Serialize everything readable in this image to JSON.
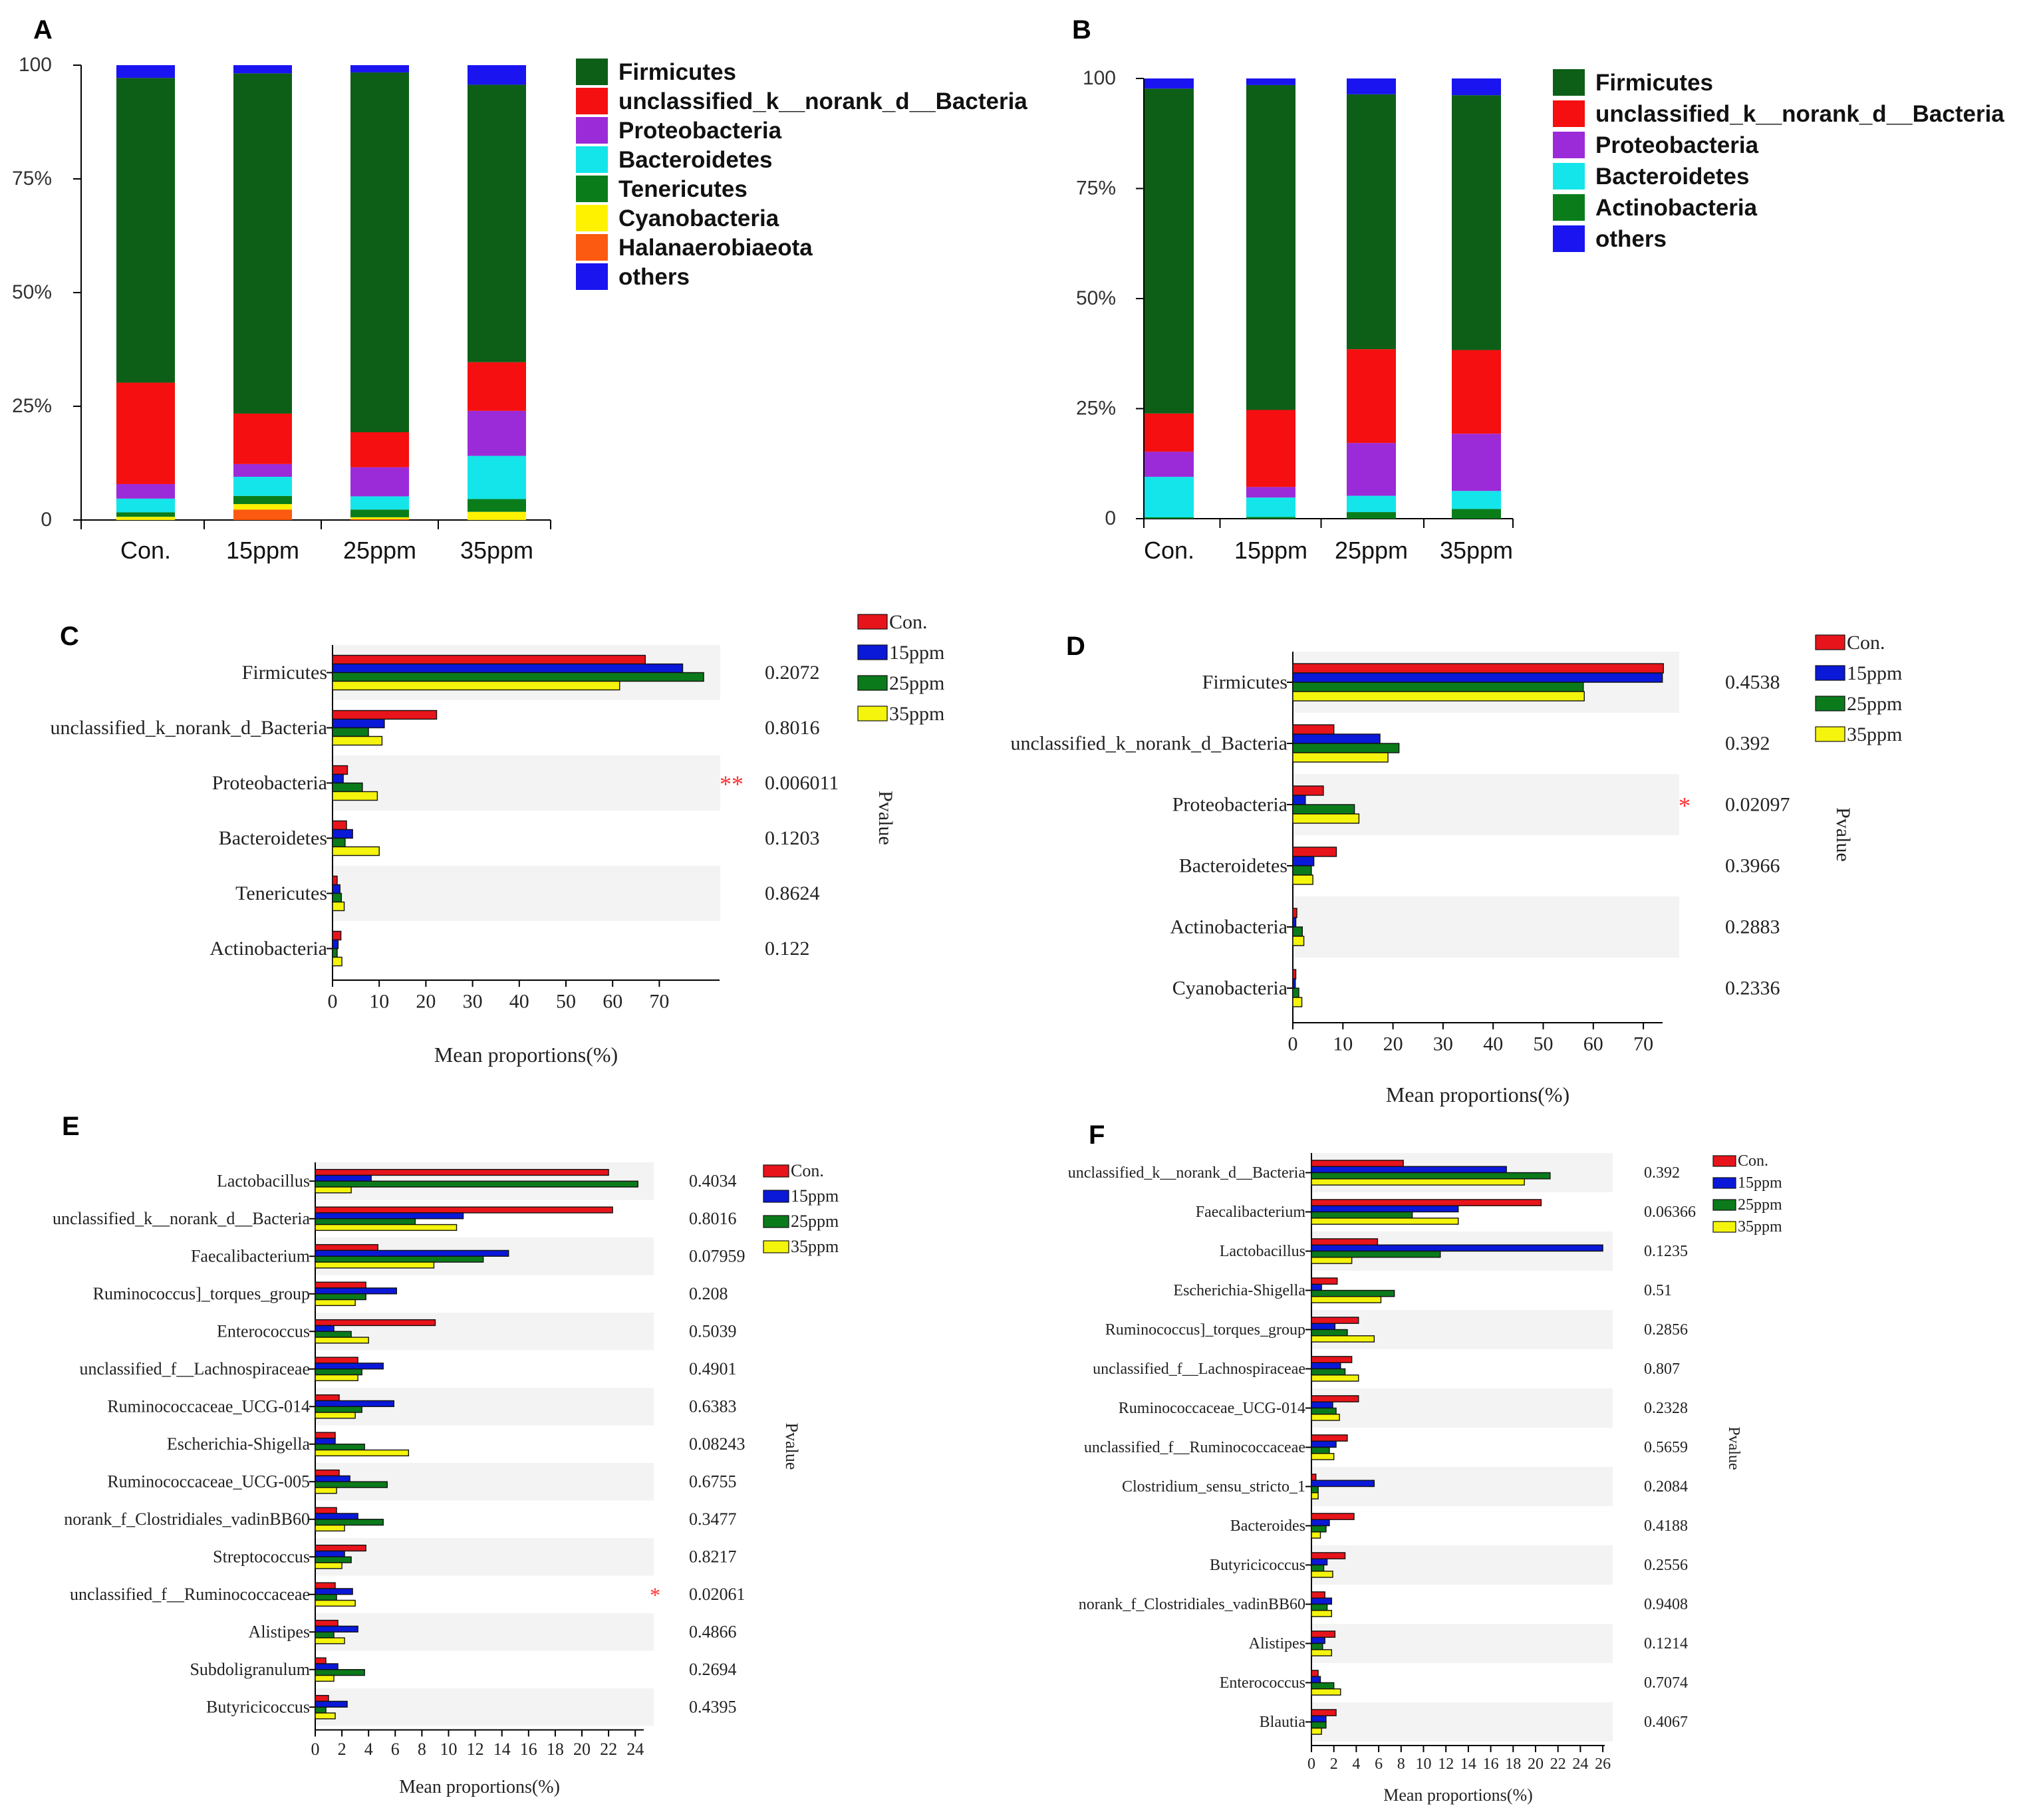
{
  "colors": {
    "Con.": "#e8141b",
    "15ppm": "#0a18d8",
    "25ppm": "#0b7a1b",
    "35ppm": "#f4f40d",
    "Firmicutes": "#0d5f17",
    "unclassified_k__norank_d__Bacteria": "#f50f10",
    "Proteobacteria": "#9b2bd8",
    "Bacteroidetes": "#14e5ea",
    "Tenericutes": "#0a7d1a",
    "Actinobacteria": "#0a7d1a",
    "Cyanobacteria": "#fff200",
    "Halanaerobiaeota": "#fb5a10",
    "others": "#1a14f0",
    "stripe": "#f3f3f3",
    "star": "#ff3030"
  },
  "chart_data": [
    {
      "panel": "A",
      "type": "bar",
      "stacked": true,
      "categories": [
        "Con.",
        "15ppm",
        "25ppm",
        "35ppm"
      ],
      "yticks": [
        "0",
        "25%",
        "50%",
        "75%",
        "100"
      ],
      "ylim": [
        0,
        100
      ],
      "series": [
        {
          "name": "Halanaerobiaeota",
          "values": [
            0.0,
            2.3,
            0.2,
            0.0
          ]
        },
        {
          "name": "Cyanobacteria",
          "values": [
            0.7,
            1.2,
            0.4,
            1.8
          ]
        },
        {
          "name": "Tenericutes",
          "values": [
            1.0,
            1.8,
            1.7,
            2.8
          ]
        },
        {
          "name": "Bacteroidetes",
          "values": [
            3.0,
            4.2,
            2.9,
            9.5
          ]
        },
        {
          "name": "Proteobacteria",
          "values": [
            3.2,
            2.8,
            6.4,
            9.9
          ]
        },
        {
          "name": "unclassified_k__norank_d__Bacteria",
          "values": [
            22.3,
            11.1,
            7.7,
            10.7
          ]
        },
        {
          "name": "Firmicutes",
          "values": [
            67.0,
            74.8,
            79.1,
            61.0
          ]
        },
        {
          "name": "others",
          "values": [
            2.8,
            1.8,
            1.6,
            4.3
          ]
        }
      ],
      "legend": [
        "Firmicutes",
        "unclassified_k__norank_d__Bacteria",
        "Proteobacteria",
        "Bacteroidetes",
        "Tenericutes",
        "Cyanobacteria",
        "Halanaerobiaeota",
        "others"
      ]
    },
    {
      "panel": "B",
      "type": "bar",
      "stacked": true,
      "categories": [
        "Con.",
        "15ppm",
        "25ppm",
        "35ppm"
      ],
      "yticks": [
        "0",
        "25%",
        "50%",
        "75%",
        "100"
      ],
      "ylim": [
        0,
        100
      ],
      "series": [
        {
          "name": "Actinobacteria",
          "values": [
            0.3,
            0.4,
            1.5,
            2.2
          ]
        },
        {
          "name": "Bacteroidetes",
          "values": [
            9.2,
            4.4,
            3.7,
            4.1
          ]
        },
        {
          "name": "Proteobacteria",
          "values": [
            5.7,
            2.4,
            12.0,
            13.0
          ]
        },
        {
          "name": "unclassified_k__norank_d__Bacteria",
          "values": [
            8.7,
            17.5,
            21.3,
            19.0
          ]
        },
        {
          "name": "Firmicutes",
          "values": [
            73.8,
            73.8,
            57.9,
            57.9
          ]
        },
        {
          "name": "others",
          "values": [
            2.3,
            1.5,
            3.6,
            3.8
          ]
        }
      ],
      "legend": [
        "Firmicutes",
        "unclassified_k__norank_d__Bacteria",
        "Proteobacteria",
        "Bacteroidetes",
        "Actinobacteria",
        "others"
      ]
    },
    {
      "panel": "C",
      "type": "bar",
      "orientation": "horizontal",
      "groups": [
        "Con.",
        "15ppm",
        "25ppm",
        "35ppm"
      ],
      "categories": [
        "Firmicutes",
        "unclassified_k_norank_d_Bacteria",
        "Proteobacteria",
        "Bacteroidetes",
        "Tenericutes",
        "Actinobacteria"
      ],
      "values": [
        [
          67.0,
          75.0,
          79.5,
          61.5
        ],
        [
          22.3,
          11.1,
          7.7,
          10.6
        ],
        [
          3.2,
          2.3,
          6.4,
          9.6
        ],
        [
          3.0,
          4.3,
          2.7,
          10.0
        ],
        [
          1.0,
          1.6,
          1.9,
          2.5
        ],
        [
          1.8,
          1.2,
          1.0,
          2.0
        ]
      ],
      "pvalues": [
        "0.2072",
        "0.8016",
        "0.006011",
        "0.1203",
        "0.8624",
        "0.122"
      ],
      "significance": [
        "",
        "",
        "**",
        "",
        "",
        ""
      ],
      "xticks": [
        "0",
        "10",
        "20",
        "30",
        "40",
        "50",
        "60",
        "70"
      ],
      "xlim": [
        0,
        80
      ],
      "xlabel": "Mean proportions(%)",
      "pvalue_label": "Pvalue"
    },
    {
      "panel": "D",
      "type": "bar",
      "orientation": "horizontal",
      "groups": [
        "Con.",
        "15ppm",
        "25ppm",
        "35ppm"
      ],
      "categories": [
        "Firmicutes",
        "unclassified_k_norank_d_Bacteria",
        "Proteobacteria",
        "Bacteroidetes",
        "Actinobacteria",
        "Cyanobacteria"
      ],
      "values": [
        [
          74.0,
          73.8,
          58.0,
          58.2
        ],
        [
          8.2,
          17.4,
          21.2,
          19.0
        ],
        [
          6.1,
          2.5,
          12.3,
          13.2
        ],
        [
          8.7,
          4.2,
          3.7,
          4.0
        ],
        [
          0.8,
          0.6,
          1.9,
          2.2
        ],
        [
          0.6,
          0.5,
          1.2,
          1.8
        ]
      ],
      "pvalues": [
        "0.4538",
        "0.392",
        "0.02097",
        "0.3966",
        "0.2883",
        "0.2336"
      ],
      "significance": [
        "",
        "",
        "*",
        "",
        "",
        ""
      ],
      "xticks": [
        "0",
        "10",
        "20",
        "30",
        "40",
        "50",
        "60",
        "70"
      ],
      "xlim": [
        0,
        75
      ],
      "xlabel": "Mean proportions(%)",
      "pvalue_label": "Pvalue"
    },
    {
      "panel": "E",
      "type": "bar",
      "orientation": "horizontal",
      "groups": [
        "Con.",
        "15ppm",
        "25ppm",
        "35ppm"
      ],
      "categories": [
        "Lactobacillus",
        "unclassified_k__norank_d__Bacteria",
        "Faecalibacterium",
        "Ruminococcus]_torques_group",
        "Enterococcus",
        "unclassified_f__Lachnospiraceae",
        "Ruminococcaceae_UCG-014",
        "Escherichia-Shigella",
        "Ruminococcaceae_UCG-005",
        "norank_f_Clostridiales_vadinBB60",
        "Streptococcus",
        "unclassified_f__Ruminococcaceae",
        "Alistipes",
        "Subdoligranulum",
        "Butyricicoccus"
      ],
      "values": [
        [
          22.0,
          4.2,
          24.2,
          2.7
        ],
        [
          22.3,
          11.1,
          7.5,
          10.6
        ],
        [
          4.7,
          14.5,
          12.6,
          8.9
        ],
        [
          3.8,
          6.1,
          3.8,
          3.0
        ],
        [
          9.0,
          1.4,
          2.7,
          4.0
        ],
        [
          3.2,
          5.1,
          3.5,
          3.2
        ],
        [
          1.8,
          5.9,
          3.5,
          3.0
        ],
        [
          1.5,
          1.5,
          3.7,
          7.0
        ],
        [
          1.8,
          2.6,
          5.4,
          1.6
        ],
        [
          1.6,
          3.2,
          5.1,
          2.2
        ],
        [
          3.8,
          2.2,
          2.7,
          2.0
        ],
        [
          1.5,
          2.8,
          1.6,
          3.0
        ],
        [
          1.7,
          3.2,
          1.4,
          2.2
        ],
        [
          0.8,
          1.7,
          3.7,
          1.4
        ],
        [
          1.0,
          2.4,
          0.8,
          1.5
        ]
      ],
      "pvalues": [
        "0.4034",
        "0.8016",
        "0.07959",
        "0.208",
        "0.5039",
        "0.4901",
        "0.6383",
        "0.08243",
        "0.6755",
        "0.3477",
        "0.8217",
        "0.02061",
        "0.4866",
        "0.2694",
        "0.4395"
      ],
      "significance": [
        "",
        "",
        "",
        "",
        "",
        "",
        "",
        "",
        "",
        "",
        "",
        "*",
        "",
        "",
        ""
      ],
      "xticks": [
        "0",
        "2",
        "4",
        "6",
        "8",
        "10",
        "12",
        "14",
        "16",
        "18",
        "20",
        "22",
        "24"
      ],
      "xlim": [
        0,
        25
      ],
      "xlabel": "Mean proportions(%)",
      "pvalue_label": "Pvalue"
    },
    {
      "panel": "F",
      "type": "bar",
      "orientation": "horizontal",
      "groups": [
        "Con.",
        "15ppm",
        "25ppm",
        "35ppm"
      ],
      "categories": [
        "unclassified_k__norank_d__Bacteria",
        "Faecalibacterium",
        "Lactobacillus",
        "Escherichia-Shigella",
        "Ruminococcus]_torques_group",
        "unclassified_f__Lachnospiraceae",
        "Ruminococcaceae_UCG-014",
        "unclassified_f__Ruminococcaceae",
        "Clostridium_sensu_stricto_1",
        "Bacteroides",
        "Butyricicoccus",
        "norank_f_Clostridiales_vadinBB60",
        "Alistipes",
        "Enterococcus",
        "Blautia"
      ],
      "values": [
        [
          8.2,
          17.4,
          21.3,
          19.0
        ],
        [
          20.5,
          13.1,
          9.0,
          13.1
        ],
        [
          5.9,
          26.0,
          11.5,
          3.6
        ],
        [
          2.3,
          0.9,
          7.4,
          6.2
        ],
        [
          4.2,
          2.1,
          3.2,
          5.6
        ],
        [
          3.6,
          2.6,
          3.0,
          4.2
        ],
        [
          4.2,
          1.9,
          2.2,
          2.5
        ],
        [
          3.2,
          2.2,
          1.6,
          2.0
        ],
        [
          0.4,
          5.6,
          0.6,
          0.6
        ],
        [
          3.8,
          1.6,
          1.3,
          0.8
        ],
        [
          3.0,
          1.4,
          1.1,
          1.9
        ],
        [
          1.2,
          1.8,
          1.4,
          1.8
        ],
        [
          2.1,
          1.2,
          1.0,
          1.8
        ],
        [
          0.6,
          0.8,
          2.0,
          2.6
        ],
        [
          2.2,
          1.3,
          1.3,
          0.9
        ]
      ],
      "pvalues": [
        "0.392",
        "0.06366",
        "0.1235",
        "0.51",
        "0.2856",
        "0.807",
        "0.2328",
        "0.5659",
        "0.2084",
        "0.4188",
        "0.2556",
        "0.9408",
        "0.1214",
        "0.7074",
        "0.4067"
      ],
      "significance": [
        "",
        "",
        "",
        "",
        "",
        "",
        "",
        "",
        "",
        "",
        "",
        "",
        "",
        "",
        ""
      ],
      "xticks": [
        "0",
        "2",
        "4",
        "6",
        "8",
        "10",
        "12",
        "14",
        "16",
        "18",
        "20",
        "22",
        "24",
        "26"
      ],
      "xlim": [
        0,
        26
      ],
      "xlabel": "Mean proportions(%)",
      "pvalue_label": "Pvalue"
    }
  ]
}
